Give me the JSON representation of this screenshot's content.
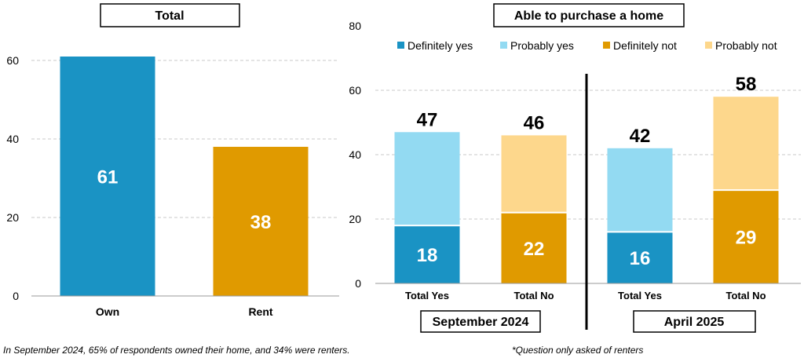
{
  "colors": {
    "definitely_yes": "#1a93c4",
    "probably_yes": "#93daf2",
    "definitely_not": "#e09a00",
    "probably_not": "#fdd78c"
  },
  "chart_data": [
    {
      "type": "bar",
      "title": "Total",
      "categories": [
        "Own",
        "Rent"
      ],
      "values": [
        61,
        38
      ],
      "value_labels": [
        "61",
        "38"
      ],
      "colors": [
        "#1a93c4",
        "#e09a00"
      ],
      "ylim": [
        0,
        70
      ],
      "yticks": [
        0,
        20,
        40,
        60
      ],
      "ytick_labels": [
        "0",
        "20",
        "40",
        "60"
      ],
      "grid": true
    },
    {
      "type": "bar",
      "stacked": true,
      "title": "Able to purchase a home",
      "categories": [
        "Total Yes",
        "Total No",
        "Total Yes",
        "Total No"
      ],
      "groups": [
        "September 2024",
        "April 2025"
      ],
      "series": [
        {
          "name": "Definitely yes",
          "values": [
            18,
            0,
            16,
            0
          ],
          "labels": [
            "18",
            "",
            "16",
            ""
          ]
        },
        {
          "name": "Probably yes",
          "values": [
            29,
            0,
            26,
            0
          ]
        },
        {
          "name": "Definitely not",
          "values": [
            0,
            22,
            0,
            29
          ],
          "labels": [
            "",
            "22",
            "",
            "29"
          ]
        },
        {
          "name": "Probably not",
          "values": [
            0,
            24,
            0,
            29
          ]
        }
      ],
      "totals": [
        47,
        46,
        42,
        58
      ],
      "total_labels": [
        "47",
        "46",
        "42",
        "58"
      ],
      "ylim": [
        0,
        80
      ],
      "yticks": [
        0,
        20,
        40,
        60,
        80
      ],
      "ytick_labels": [
        "0",
        "20",
        "40",
        "60",
        "80"
      ],
      "grid": true,
      "legend": "top"
    }
  ],
  "notes": {
    "left": "In September 2024, 65% of respondents owned their home, and 34% were renters.",
    "right": "*Question only asked of renters"
  }
}
